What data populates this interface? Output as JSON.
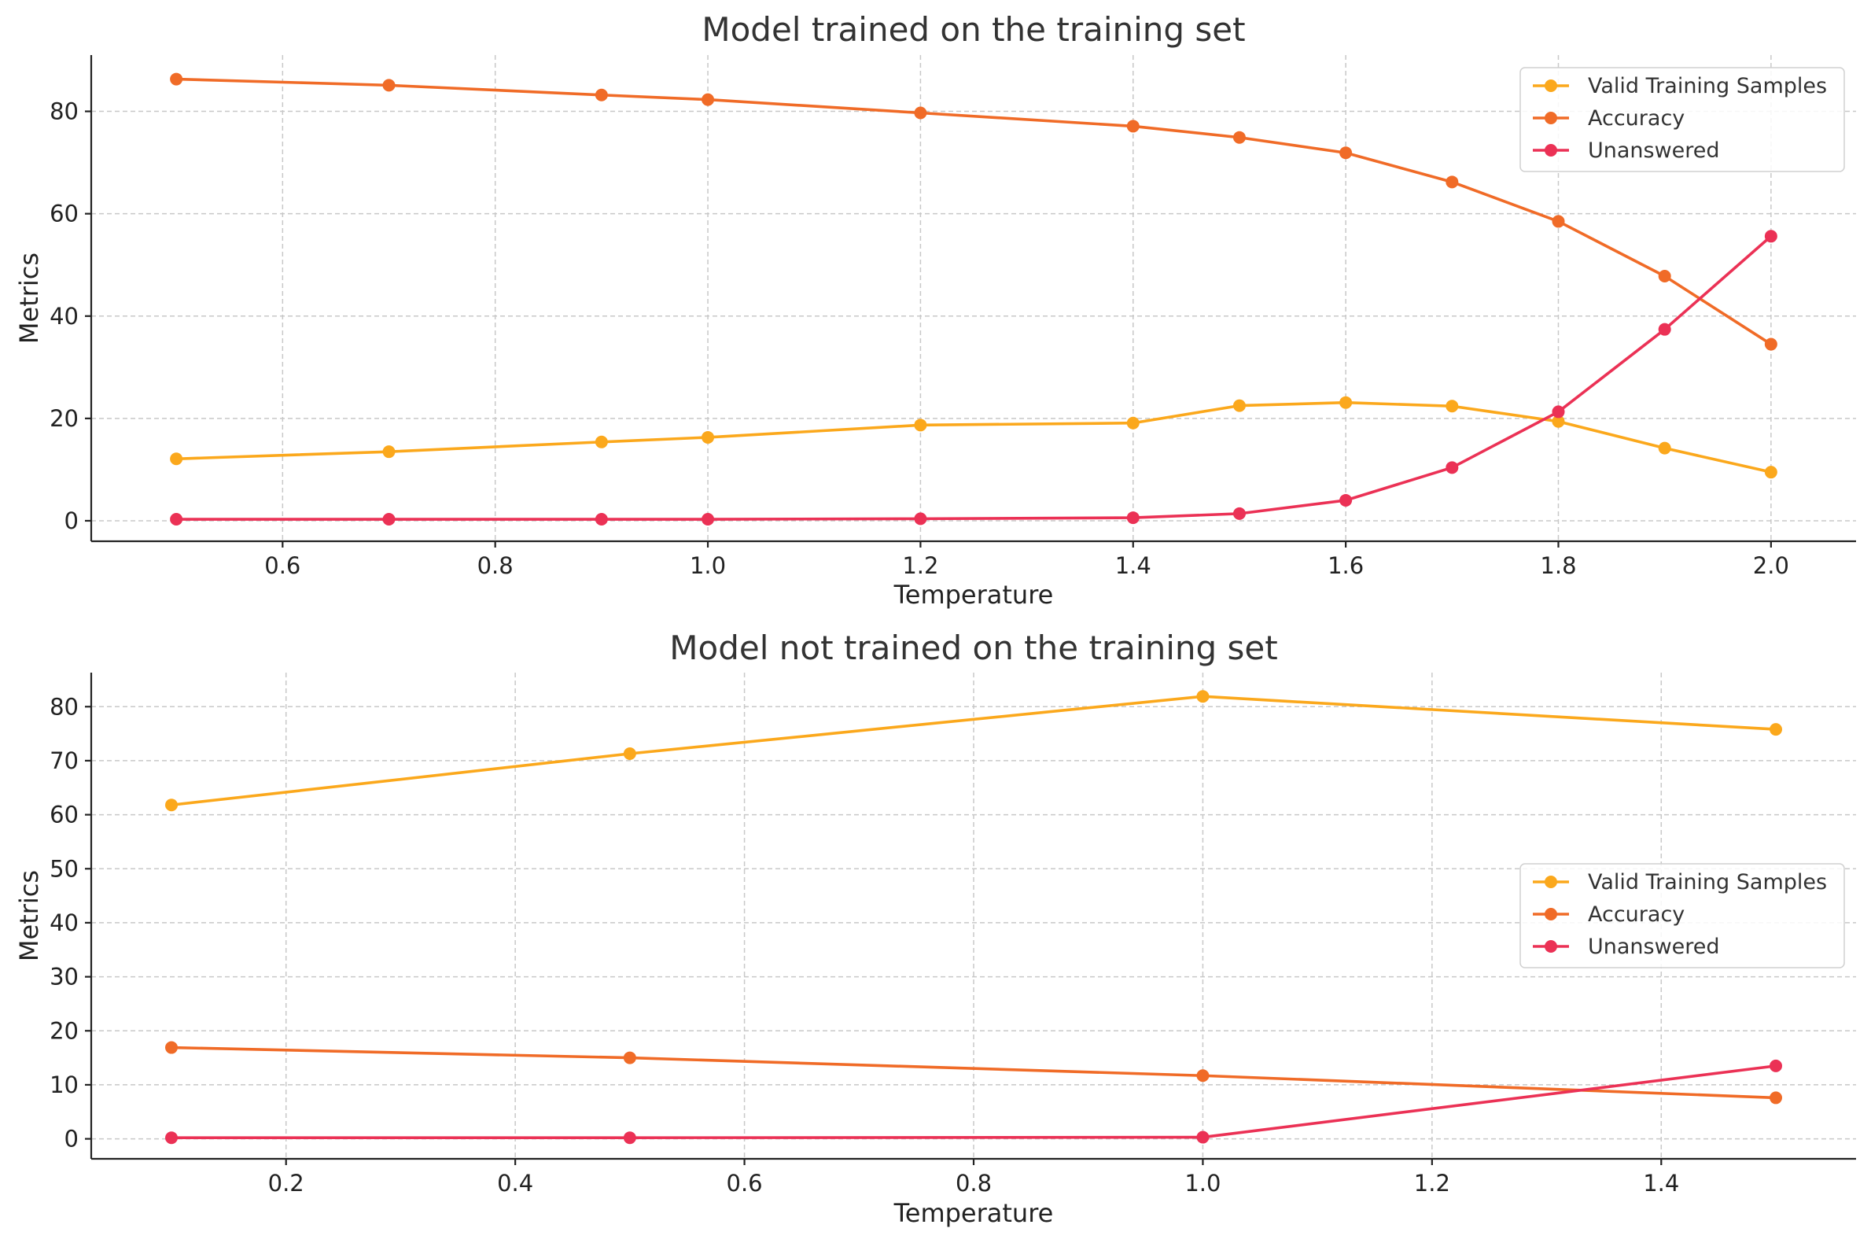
{
  "colors": {
    "valid": "#FBA81C",
    "accuracy": "#F06B27",
    "unanswered": "#EB3155"
  },
  "chart_data": [
    {
      "type": "line",
      "title": "Model trained on the training set",
      "xlabel": "Temperature",
      "ylabel": "Metrics",
      "xlim": [
        0.42,
        2.08
      ],
      "ylim": [
        -4,
        91
      ],
      "xticks": [
        "0.6",
        "0.8",
        "1.0",
        "1.2",
        "1.4",
        "1.6",
        "1.8",
        "2.0"
      ],
      "yticks": [
        "0",
        "20",
        "40",
        "60",
        "80"
      ],
      "grid": true,
      "legend_position": "top-right",
      "x": [
        0.5,
        0.7,
        0.9,
        1.0,
        1.2,
        1.4,
        1.5,
        1.6,
        1.7,
        1.8,
        1.9,
        2.0
      ],
      "series": [
        {
          "name": "Valid Training Samples",
          "color_key": "valid",
          "values": [
            12.1,
            13.5,
            15.4,
            16.3,
            18.7,
            19.1,
            22.5,
            23.1,
            22.4,
            19.4,
            14.2,
            9.5
          ]
        },
        {
          "name": "Accuracy",
          "color_key": "accuracy",
          "values": [
            86.3,
            85.1,
            83.2,
            82.3,
            79.7,
            77.1,
            74.9,
            71.9,
            66.2,
            58.5,
            47.8,
            34.5
          ]
        },
        {
          "name": "Unanswered",
          "color_key": "unanswered",
          "values": [
            0.3,
            0.3,
            0.3,
            0.3,
            0.4,
            0.6,
            1.4,
            4.0,
            10.4,
            21.3,
            37.4,
            55.6
          ]
        }
      ]
    },
    {
      "type": "line",
      "title": "Model not trained on the training set",
      "xlabel": "Temperature",
      "ylabel": "Metrics",
      "xlim": [
        0.03,
        1.57
      ],
      "ylim": [
        -3.7,
        86.3
      ],
      "xticks": [
        "0.2",
        "0.4",
        "0.6",
        "0.8",
        "1.0",
        "1.2",
        "1.4"
      ],
      "yticks": [
        "0",
        "10",
        "20",
        "30",
        "40",
        "50",
        "60",
        "70",
        "80"
      ],
      "grid": true,
      "legend_position": "center-right",
      "x": [
        0.1,
        0.5,
        1.0,
        1.5
      ],
      "series": [
        {
          "name": "Valid Training Samples",
          "color_key": "valid",
          "values": [
            61.8,
            71.3,
            81.9,
            75.8
          ]
        },
        {
          "name": "Accuracy",
          "color_key": "accuracy",
          "values": [
            16.9,
            15.0,
            11.7,
            7.6
          ]
        },
        {
          "name": "Unanswered",
          "color_key": "unanswered",
          "values": [
            0.2,
            0.2,
            0.3,
            13.5
          ]
        }
      ]
    }
  ]
}
